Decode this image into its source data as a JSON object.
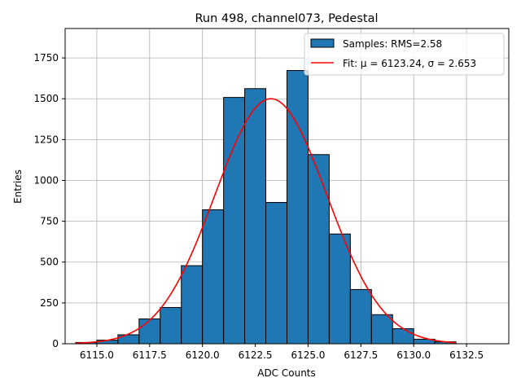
{
  "chart_data": {
    "type": "bar",
    "title": "Run 498, channel073, Pedestal",
    "xlabel": "ADC Counts",
    "ylabel": "Entries",
    "xlim": [
      6113.5,
      6134.5
    ],
    "ylim": [
      0,
      1930
    ],
    "grid": true,
    "legend_position": "top-right",
    "xticks": [
      6115.0,
      6117.5,
      6120.0,
      6122.5,
      6125.0,
      6127.5,
      6130.0,
      6132.5
    ],
    "xtick_labels": [
      "6115.0",
      "6117.5",
      "6120.0",
      "6122.5",
      "6125.0",
      "6127.5",
      "6130.0",
      "6132.5"
    ],
    "yticks": [
      0,
      250,
      500,
      750,
      1000,
      1250,
      1500,
      1750
    ],
    "ytick_labels": [
      "0",
      "250",
      "500",
      "750",
      "1000",
      "1250",
      "1500",
      "1750"
    ],
    "bins": [
      {
        "x0": 6114.0,
        "x1": 6115.0,
        "value": 8
      },
      {
        "x0": 6115.0,
        "x1": 6116.0,
        "value": 22
      },
      {
        "x0": 6116.0,
        "x1": 6117.0,
        "value": 55
      },
      {
        "x0": 6117.0,
        "x1": 6118.0,
        "value": 152
      },
      {
        "x0": 6118.0,
        "x1": 6119.0,
        "value": 222
      },
      {
        "x0": 6119.0,
        "x1": 6120.0,
        "value": 478
      },
      {
        "x0": 6120.0,
        "x1": 6121.0,
        "value": 820
      },
      {
        "x0": 6121.0,
        "x1": 6122.0,
        "value": 1508
      },
      {
        "x0": 6122.0,
        "x1": 6123.0,
        "value": 1562
      },
      {
        "x0": 6123.0,
        "x1": 6124.0,
        "value": 865
      },
      {
        "x0": 6124.0,
        "x1": 6125.0,
        "value": 1673
      },
      {
        "x0": 6125.0,
        "x1": 6126.0,
        "value": 1158
      },
      {
        "x0": 6126.0,
        "x1": 6127.0,
        "value": 672
      },
      {
        "x0": 6127.0,
        "x1": 6128.0,
        "value": 332
      },
      {
        "x0": 6128.0,
        "x1": 6129.0,
        "value": 178
      },
      {
        "x0": 6129.0,
        "x1": 6130.0,
        "value": 92
      },
      {
        "x0": 6130.0,
        "x1": 6131.0,
        "value": 28
      },
      {
        "x0": 6131.0,
        "x1": 6132.0,
        "value": 12
      }
    ],
    "fit": {
      "type": "gaussian",
      "mu": 6123.24,
      "sigma": 2.653,
      "amplitude": 1500,
      "x_range": [
        6114.0,
        6132.0
      ]
    },
    "series": [
      {
        "name": "Samples: RMS=2.58",
        "kind": "histogram",
        "color": "#1f77b4",
        "edge_color": "#000000"
      },
      {
        "name": "Fit: μ = 6123.24, σ = 2.653",
        "kind": "line",
        "color": "#ff0000"
      }
    ]
  }
}
